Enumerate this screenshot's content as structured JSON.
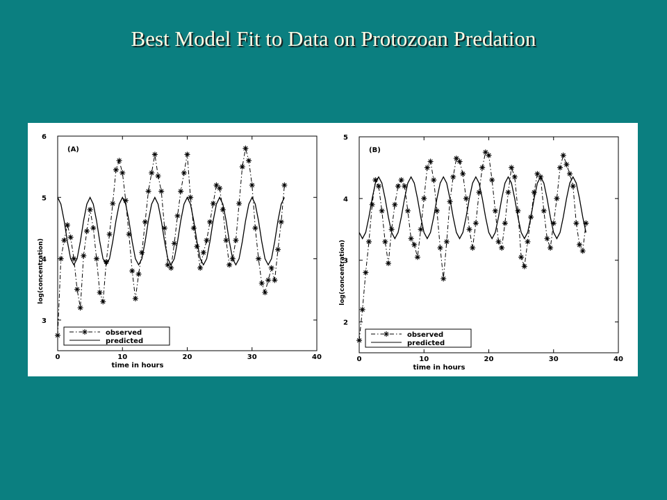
{
  "title": "Best Model Fit to Data on Protozoan Predation",
  "chart_data": [
    {
      "type": "line",
      "panel_label": "(A)",
      "xlabel": "time in hours",
      "ylabel": "log(concentration)",
      "xlim": [
        0,
        40
      ],
      "xticks": [
        0,
        10,
        20,
        30,
        40
      ],
      "ylim": [
        2.5,
        6
      ],
      "yticks": [
        3,
        4,
        5,
        6
      ],
      "legend": "lower left",
      "x": [
        0,
        0.5,
        1,
        1.5,
        2,
        2.5,
        3,
        3.5,
        4,
        4.5,
        5,
        5.5,
        6,
        6.5,
        7,
        7.5,
        8,
        8.5,
        9,
        9.5,
        10,
        10.5,
        11,
        11.5,
        12,
        12.5,
        13,
        13.5,
        14,
        14.5,
        15,
        15.5,
        16,
        16.5,
        17,
        17.5,
        18,
        18.5,
        19,
        19.5,
        20,
        20.5,
        21,
        21.5,
        22,
        22.5,
        23,
        23.5,
        24,
        24.5,
        25,
        25.5,
        26,
        26.5,
        27,
        27.5,
        28,
        28.5,
        29,
        29.5,
        30,
        30.5,
        31,
        31.5,
        32,
        32.5,
        33,
        33.5,
        34,
        34.5,
        35
      ],
      "series": [
        {
          "name": "observed",
          "color": "#000000",
          "style": "dashdot",
          "marker": "*",
          "values": [
            2.75,
            4.0,
            4.3,
            4.55,
            4.35,
            4.0,
            3.5,
            3.2,
            4.05,
            4.45,
            4.8,
            4.5,
            4.0,
            3.45,
            3.3,
            3.95,
            4.4,
            4.9,
            5.45,
            5.6,
            5.4,
            4.95,
            4.4,
            3.8,
            3.35,
            3.75,
            4.1,
            4.6,
            5.1,
            5.4,
            5.7,
            5.35,
            5.1,
            4.5,
            3.9,
            3.85,
            4.25,
            4.7,
            5.1,
            5.4,
            5.7,
            5.0,
            4.5,
            4.2,
            3.85,
            4.1,
            4.3,
            4.6,
            4.9,
            5.2,
            5.15,
            4.8,
            4.3,
            3.9,
            4.0,
            4.3,
            4.9,
            5.5,
            5.8,
            5.6,
            5.2,
            4.5,
            4.0,
            3.6,
            3.45,
            3.65,
            3.85,
            3.65,
            4.15,
            4.6,
            5.2
          ]
        },
        {
          "name": "predicted",
          "color": "#000000",
          "style": "solid",
          "values": [
            5.0,
            4.89,
            4.62,
            4.28,
            4.0,
            3.9,
            4.0,
            4.28,
            4.62,
            4.89,
            5.0,
            4.89,
            4.62,
            4.28,
            4.0,
            3.9,
            4.0,
            4.28,
            4.62,
            4.89,
            5.0,
            4.89,
            4.62,
            4.28,
            4.0,
            3.9,
            4.0,
            4.28,
            4.62,
            4.89,
            5.0,
            4.89,
            4.62,
            4.28,
            4.0,
            3.9,
            4.0,
            4.28,
            4.62,
            4.89,
            5.0,
            4.89,
            4.62,
            4.28,
            4.0,
            3.9,
            4.0,
            4.28,
            4.62,
            4.89,
            5.0,
            4.89,
            4.62,
            4.28,
            4.0,
            3.9,
            4.0,
            4.28,
            4.62,
            4.89,
            5.0,
            4.89,
            4.62,
            4.28,
            4.0,
            3.9,
            4.0,
            4.28,
            4.62,
            4.89,
            5.0
          ]
        }
      ]
    },
    {
      "type": "line",
      "panel_label": "(B)",
      "xlabel": "time in hours",
      "ylabel": "log(concentration)",
      "xlim": [
        0,
        40
      ],
      "xticks": [
        0,
        10,
        20,
        30,
        40
      ],
      "ylim": [
        1.5,
        5
      ],
      "yticks": [
        2,
        3,
        4,
        5
      ],
      "legend": "lower left",
      "x": [
        0,
        0.5,
        1,
        1.5,
        2,
        2.5,
        3,
        3.5,
        4,
        4.5,
        5,
        5.5,
        6,
        6.5,
        7,
        7.5,
        8,
        8.5,
        9,
        9.5,
        10,
        10.5,
        11,
        11.5,
        12,
        12.5,
        13,
        13.5,
        14,
        14.5,
        15,
        15.5,
        16,
        16.5,
        17,
        17.5,
        18,
        18.5,
        19,
        19.5,
        20,
        20.5,
        21,
        21.5,
        22,
        22.5,
        23,
        23.5,
        24,
        24.5,
        25,
        25.5,
        26,
        26.5,
        27,
        27.5,
        28,
        28.5,
        29,
        29.5,
        30,
        30.5,
        31,
        31.5,
        32,
        32.5,
        33,
        33.5,
        34,
        34.5,
        35
      ],
      "series": [
        {
          "name": "observed",
          "color": "#000000",
          "style": "dashdot",
          "marker": "*",
          "values": [
            1.7,
            2.2,
            2.8,
            3.3,
            3.9,
            4.3,
            4.2,
            3.8,
            3.3,
            2.95,
            3.5,
            3.9,
            4.2,
            4.3,
            4.2,
            3.8,
            3.35,
            3.25,
            3.05,
            3.5,
            4.0,
            4.5,
            4.6,
            4.3,
            3.8,
            3.2,
            2.7,
            3.3,
            3.95,
            4.35,
            4.65,
            4.6,
            4.4,
            4.0,
            3.5,
            3.2,
            3.6,
            4.1,
            4.5,
            4.75,
            4.7,
            4.3,
            3.8,
            3.3,
            3.2,
            3.6,
            4.1,
            4.5,
            4.35,
            3.8,
            3.05,
            2.9,
            3.3,
            3.7,
            4.1,
            4.4,
            4.35,
            3.8,
            3.35,
            3.2,
            3.6,
            4.0,
            4.5,
            4.7,
            4.55,
            4.4,
            4.2,
            3.6,
            3.25,
            3.15,
            3.6
          ]
        },
        {
          "name": "predicted",
          "color": "#000000",
          "style": "solid",
          "values": [
            3.45,
            3.35,
            3.45,
            3.7,
            4.0,
            4.25,
            4.35,
            4.25,
            4.0,
            3.7,
            3.45,
            3.35,
            3.45,
            3.7,
            4.0,
            4.25,
            4.35,
            4.25,
            4.0,
            3.7,
            3.45,
            3.35,
            3.45,
            3.7,
            4.0,
            4.25,
            4.35,
            4.25,
            4.0,
            3.7,
            3.45,
            3.35,
            3.45,
            3.7,
            4.0,
            4.25,
            4.35,
            4.25,
            4.0,
            3.7,
            3.45,
            3.35,
            3.45,
            3.7,
            4.0,
            4.25,
            4.35,
            4.25,
            4.0,
            3.7,
            3.45,
            3.35,
            3.45,
            3.7,
            4.0,
            4.25,
            4.35,
            4.25,
            4.0,
            3.7,
            3.45,
            3.35,
            3.45,
            3.7,
            4.0,
            4.25,
            4.35,
            4.25,
            4.0,
            3.7,
            3.45
          ]
        }
      ]
    }
  ]
}
